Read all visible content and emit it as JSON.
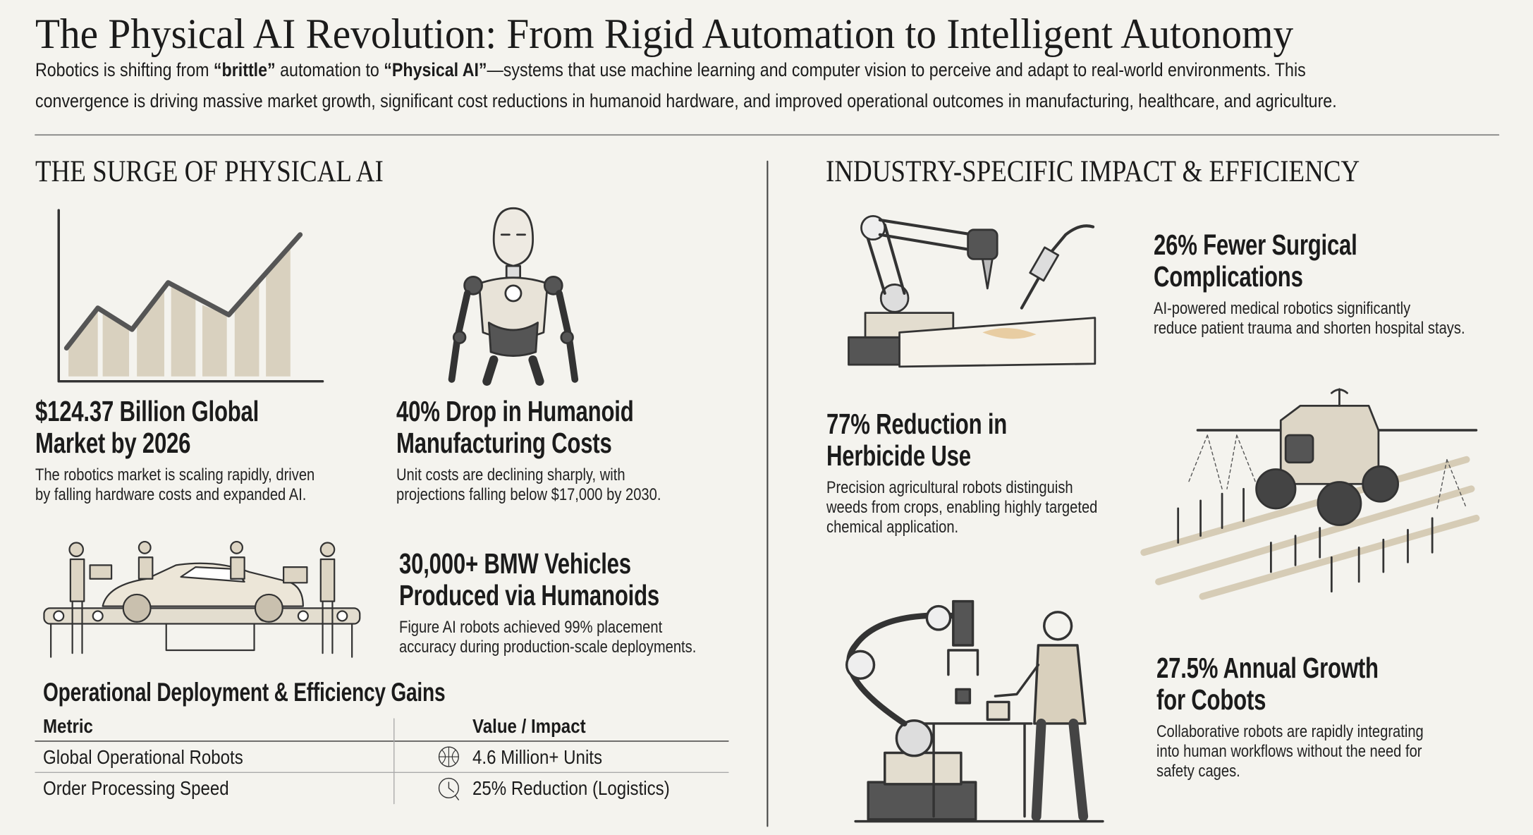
{
  "header": {
    "title": "The Physical AI Revolution: From Rigid Automation to Intelligent Autonomy",
    "subtitle": [
      [
        "Robotics is shifting from ",
        "“brittle”",
        " automation to ",
        "“Physical AI”",
        "—systems that use machine learning and computer vision to perceive and adapt to real-world environments. This"
      ],
      [
        "convergence is driving massive market growth, significant cost reductions in humanoid hardware, and improved operational outcomes in manufacturing, healthcare, and agriculture."
      ]
    ]
  },
  "left": {
    "heading": "THE SURGE OF PHYSICAL AI",
    "stats": [
      {
        "headline": [
          "$124.37 Billion Global",
          "Market by 2026"
        ],
        "description": [
          "The robotics market is scaling rapidly, driven",
          "by falling hardware costs and expanded AI."
        ]
      },
      {
        "headline": [
          "40% Drop in Humanoid",
          "Manufacturing Costs"
        ],
        "description": [
          "Unit costs are declining sharply, with",
          "projections falling below $17,000 by 2030."
        ]
      },
      {
        "headline": [
          "30,000+ BMW Vehicles",
          "Produced via Humanoids"
        ],
        "description": [
          "Figure AI robots achieved 99% placement",
          "accuracy during production-scale deployments."
        ]
      }
    ],
    "table": {
      "title": "Operational Deployment & Efficiency Gains",
      "columns": [
        "Metric",
        "Value / Impact"
      ],
      "rows": [
        [
          "Global Operational Robots",
          "4.6 Million+ Units"
        ],
        [
          "Order Processing Speed",
          "25% Reduction (Logistics)"
        ]
      ]
    }
  },
  "right": {
    "heading": "INDUSTRY-SPECIFIC IMPACT & EFFICIENCY",
    "stats": [
      {
        "headline": [
          "26% Fewer Surgical",
          "Complications"
        ],
        "description": [
          "AI-powered medical robotics significantly",
          "reduce patient trauma and shorten hospital stays."
        ]
      },
      {
        "headline": [
          "77% Reduction in",
          "Herbicide Use"
        ],
        "description": [
          "Precision agricultural robots distinguish",
          "weeds from crops, enabling highly targeted",
          "chemical application."
        ]
      },
      {
        "headline": [
          "27.5% Annual Growth",
          "for Cobots"
        ],
        "description": [
          "Collaborative robots are rapidly integrating",
          "into human workflows without the need for",
          "safety cages."
        ]
      }
    ]
  }
}
